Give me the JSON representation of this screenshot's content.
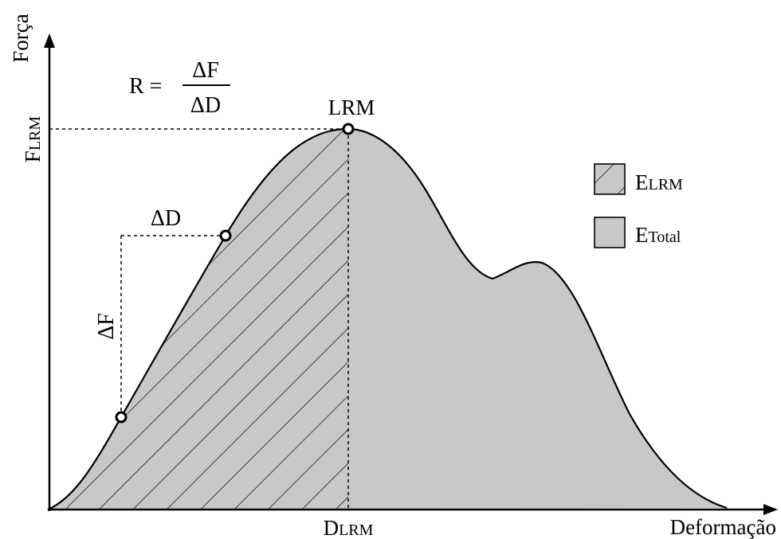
{
  "axes": {
    "y_label": "Força",
    "x_label": "Deformação"
  },
  "ticks": {
    "f_lrm_main": "F",
    "f_lrm_sub": "LRM",
    "d_lrm_main": "D",
    "d_lrm_sub": "LRM"
  },
  "formula": {
    "lhs": "R =",
    "numerator": "ΔF",
    "denominator": "ΔD"
  },
  "annotations": {
    "peak_label": "LRM",
    "delta_d": "ΔD",
    "delta_f": "ΔF"
  },
  "legend": {
    "items": [
      {
        "main": "E",
        "sub": "LRM",
        "pattern": "hatched"
      },
      {
        "main": "E",
        "sub": "Total",
        "pattern": "solid"
      }
    ]
  },
  "colors": {
    "area_fill": "#c8c8c8",
    "line": "#000000",
    "background": "#ffffff"
  }
}
